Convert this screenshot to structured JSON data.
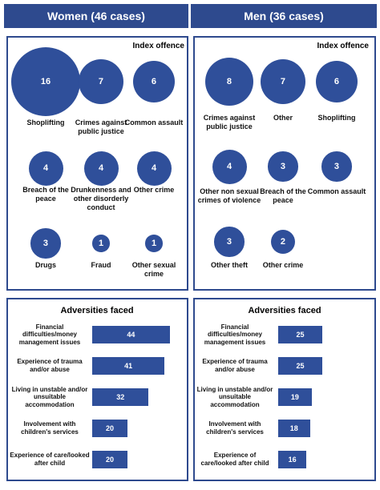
{
  "header": {
    "women": "Women (46 cases)",
    "men": "Men (36 cases)"
  },
  "chart_data": [
    {
      "type": "bubble",
      "title": "Index offence",
      "categories": [
        "Shoplifting",
        "Crimes against public justice",
        "Common assault",
        "Breach of the peace",
        "Drunkenness and other disorderly conduct",
        "Other crime",
        "Drugs",
        "Fraud",
        "Other sexual crime"
      ],
      "values": [
        16,
        7,
        6,
        4,
        4,
        4,
        3,
        1,
        1
      ],
      "color": "#2f4f9a"
    },
    {
      "type": "bubble",
      "title": "Index offence",
      "categories": [
        "Crimes against public justice",
        "Other",
        "Shoplifting",
        "Other non sexual crimes of violence",
        "Breach of the peace",
        "Common assault",
        "Other theft",
        "Other crime"
      ],
      "values": [
        8,
        7,
        6,
        4,
        3,
        3,
        3,
        2
      ],
      "color": "#2f4f9a"
    },
    {
      "type": "bar",
      "title": "Adversities faced",
      "categories": [
        "Financial difficulties/money management issues",
        "Experience of trauma and/or abuse",
        "Living in unstable and/or unsuitable accommodation",
        "Involvement with children's services",
        "Experience of care/looked after child"
      ],
      "values": [
        44,
        41,
        32,
        20,
        20
      ],
      "color": "#2f4f9a"
    },
    {
      "type": "bar",
      "title": "Adversities faced",
      "categories": [
        "Financial difficulties/money management issues",
        "Experience of trauma and/or abuse",
        "Living in unstable and/or unsuitable accommodation",
        "Involvement with children's services",
        "Experience of care/looked after child"
      ],
      "values": [
        25,
        25,
        19,
        18,
        16
      ],
      "color": "#2f4f9a"
    }
  ]
}
